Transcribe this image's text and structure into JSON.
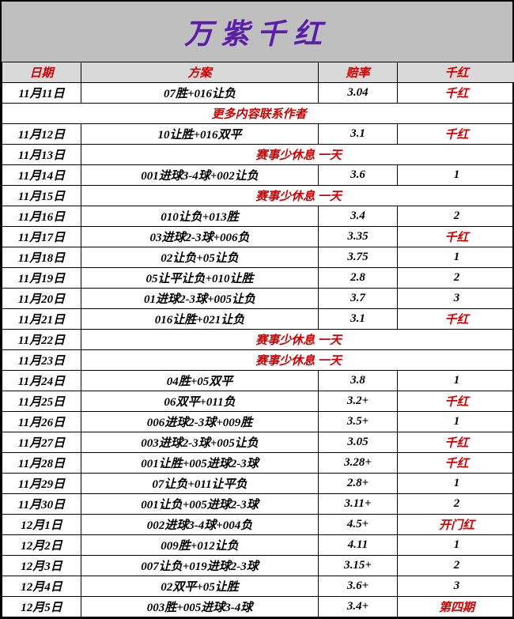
{
  "title": "万紫千红",
  "title_color": "#5a1fa8",
  "headers": {
    "date": "日期",
    "plan": "方案",
    "odds": "赔率",
    "result": "千红"
  },
  "header_color": "#d20000",
  "header_bg": "#d9d9d9",
  "title_bg": "#bfbfbf",
  "rows": [
    {
      "type": "data",
      "date": "11月11日",
      "plan": "07胜+016让负",
      "odds": "3.04",
      "result": "千红",
      "result_red": true
    },
    {
      "type": "banner",
      "text": "更多内容联系作者"
    },
    {
      "type": "data",
      "date": "11月12日",
      "plan": "10让胜+016双平",
      "odds": "3.1",
      "result": "千红",
      "result_red": true
    },
    {
      "type": "rest",
      "date": "11月13日",
      "text": "赛事少休息 一天"
    },
    {
      "type": "data",
      "date": "11月14日",
      "plan": "001进球3-4球+002让负",
      "odds": "3.6",
      "result": "1",
      "result_red": false
    },
    {
      "type": "rest",
      "date": "11月15日",
      "text": "赛事少休息 一天"
    },
    {
      "type": "data",
      "date": "11月16日",
      "plan": "010让负+013胜",
      "odds": "3.4",
      "result": "2",
      "result_red": false
    },
    {
      "type": "data",
      "date": "11月17日",
      "plan": "03进球2-3球+006负",
      "odds": "3.35",
      "result": "千红",
      "result_red": true
    },
    {
      "type": "data",
      "date": "11月18日",
      "plan": "02让负+05让负",
      "odds": "3.75",
      "result": "1",
      "result_red": false
    },
    {
      "type": "data",
      "date": "11月19日",
      "plan": "05让平让负+010让胜",
      "odds": "2.8",
      "result": "2",
      "result_red": false
    },
    {
      "type": "data",
      "date": "11月20日",
      "plan": "01进球2-3球+005让负",
      "odds": "3.7",
      "result": "3",
      "result_red": false
    },
    {
      "type": "data",
      "date": "11月21日",
      "plan": "016让胜+021让负",
      "odds": "3.1",
      "result": "千红",
      "result_red": true
    },
    {
      "type": "rest",
      "date": "11月22日",
      "text": "赛事少休息 一天"
    },
    {
      "type": "rest",
      "date": "11月23日",
      "text": "赛事少休息 一天"
    },
    {
      "type": "data",
      "date": "11月24日",
      "plan": "04胜+05双平",
      "odds": "3.8",
      "result": "1",
      "result_red": false
    },
    {
      "type": "data",
      "date": "11月25日",
      "plan": "06双平+011负",
      "odds": "3.2+",
      "result": "千红",
      "result_red": true
    },
    {
      "type": "data",
      "date": "11月26日",
      "plan": "006进球2-3球+009胜",
      "odds": "3.5+",
      "result": "1",
      "result_red": false
    },
    {
      "type": "data",
      "date": "11月27日",
      "plan": "003进球2-3球+005让负",
      "odds": "3.05",
      "result": "千红",
      "result_red": true
    },
    {
      "type": "data",
      "date": "11月28日",
      "plan": "001让胜+005进球2-3球",
      "odds": "3.28+",
      "result": "千红",
      "result_red": true
    },
    {
      "type": "data",
      "date": "11月29日",
      "plan": "07让负+011让平负",
      "odds": "2.8+",
      "result": "1",
      "result_red": false
    },
    {
      "type": "data",
      "date": "11月30日",
      "plan": "001让负+005进球2-3球",
      "odds": "3.11+",
      "result": "2",
      "result_red": false
    },
    {
      "type": "data",
      "date": "12月1日",
      "plan": "002进球3-4球+004负",
      "odds": "4.5+",
      "result": "开门红",
      "result_red": true
    },
    {
      "type": "data",
      "date": "12月2日",
      "plan": "009胜+012让负",
      "odds": "4.11",
      "result": "1",
      "result_red": false
    },
    {
      "type": "data",
      "date": "12月3日",
      "plan": "007让负+019进球2-3球",
      "odds": "3.15+",
      "result": "2",
      "result_red": false
    },
    {
      "type": "data",
      "date": "12月4日",
      "plan": "02双平+05让胜",
      "odds": "3.6+",
      "result": "3",
      "result_red": false
    },
    {
      "type": "data",
      "date": "12月5日",
      "plan": "003胜+005进球3-4球",
      "odds": "3.4+",
      "result": "第四期",
      "result_red": true
    }
  ]
}
